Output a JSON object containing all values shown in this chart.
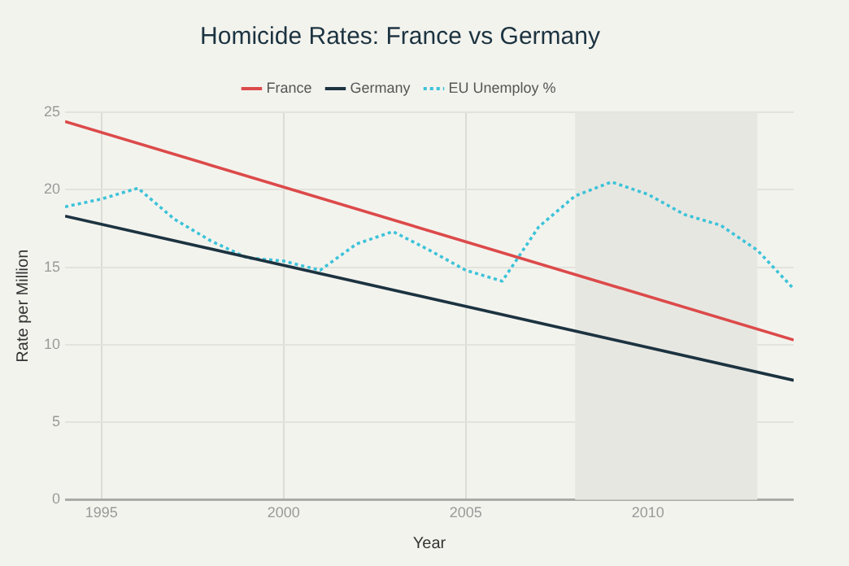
{
  "chart_data": {
    "type": "line",
    "title": "Homicide Rates: France vs Germany",
    "xlabel": "Year",
    "ylabel": "Rate per Million",
    "xlim": [
      1994,
      2014
    ],
    "xticks": [
      1995,
      2000,
      2005,
      2010
    ],
    "ylim": [
      0,
      25
    ],
    "yticks": [
      0,
      5,
      10,
      15,
      20,
      25
    ],
    "grid": true,
    "legend": "top",
    "marker": "none",
    "bands": [
      {
        "axis": "x",
        "from": 2008,
        "to": 2013,
        "color": "#e7e7e2"
      }
    ],
    "series": [
      {
        "name": "France",
        "color": "#dc4a4a",
        "line_style": "solid",
        "x": [
          1994,
          2014
        ],
        "values": [
          24.4,
          10.3
        ]
      },
      {
        "name": "Germany",
        "color": "#1c3340",
        "line_style": "solid",
        "x": [
          1994,
          2014
        ],
        "values": [
          18.3,
          7.7
        ]
      },
      {
        "name": "EU Unemploy %",
        "color": "#3cc3d8",
        "line_style": "dotted",
        "x": [
          1994,
          1995,
          1996,
          1997,
          1998,
          1999,
          2000,
          2001,
          2002,
          2003,
          2004,
          2005,
          2006,
          2007,
          2008,
          2009,
          2010,
          2011,
          2012,
          2013,
          2014
        ],
        "values": [
          18.9,
          19.4,
          20.1,
          18.1,
          16.7,
          15.6,
          15.4,
          14.8,
          16.5,
          17.3,
          16.1,
          14.8,
          14.1,
          17.6,
          19.6,
          20.5,
          19.7,
          18.4,
          17.7,
          16.1,
          13.6
        ]
      }
    ]
  }
}
